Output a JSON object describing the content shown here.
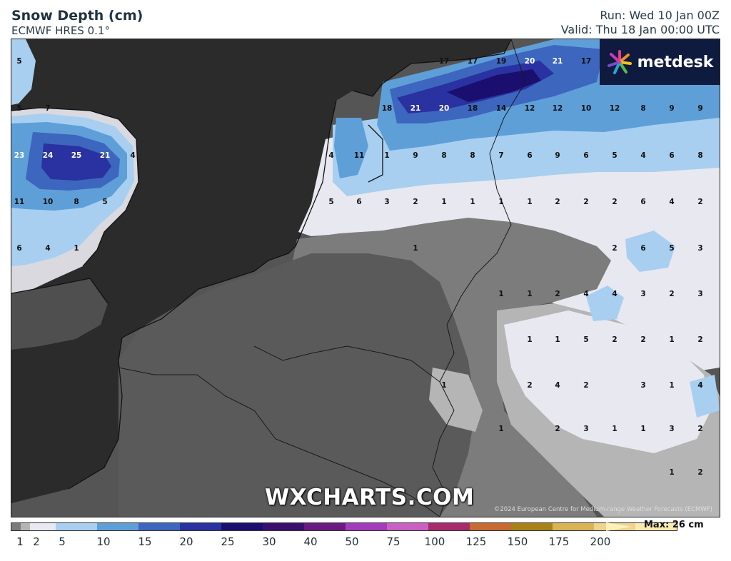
{
  "header": {
    "title": "Snow Depth (cm)",
    "model": "ECMWF HRES 0.1°",
    "run": "Run: Wed 10 Jan 00Z",
    "valid": "Valid: Thu 18 Jan 00:00 UTC"
  },
  "logo": {
    "text": "metdesk",
    "icon": "metdesk-burst-icon"
  },
  "watermark": "WXCHARTS.COM",
  "credit": "©2024 European Centre for Medium-range Weather Forecasts (ECMWF)",
  "legend": {
    "ticks": [
      "1",
      "2",
      "5",
      "10",
      "15",
      "20",
      "25",
      "30",
      "40",
      "50",
      "75",
      "100",
      "125",
      "150",
      "175",
      "200"
    ],
    "colors": [
      "#7c7c7c",
      "#b5b5b5",
      "#e8e8f0",
      "#a8cff0",
      "#5f9fd8",
      "#3d66be",
      "#2a31a0",
      "#1a0f6e",
      "#3b0f6e",
      "#6a1a80",
      "#a23cbc",
      "#c960c4",
      "#a82c6c",
      "#c86a34",
      "#a88218",
      "#d8b454",
      "#f0d48c",
      "#fbeaae"
    ],
    "max_label": "Max: 26 cm"
  },
  "grid_values": [
    {
      "v": "5",
      "c": "#111"
    },
    {
      "v": "5",
      "c": "#111"
    },
    {
      "v": "7",
      "c": "#111"
    },
    {
      "v": "23",
      "c": "#fff"
    },
    {
      "v": "24",
      "c": "#fff"
    },
    {
      "v": "25",
      "c": "#fff"
    },
    {
      "v": "21",
      "c": "#fff"
    },
    {
      "v": "4",
      "c": "#111"
    },
    {
      "v": "11",
      "c": "#111"
    },
    {
      "v": "10",
      "c": "#111"
    },
    {
      "v": "8",
      "c": "#111"
    },
    {
      "v": "5",
      "c": "#111"
    },
    {
      "v": "6",
      "c": "#111"
    },
    {
      "v": "4",
      "c": "#111"
    },
    {
      "v": "1",
      "c": "#111"
    },
    {
      "v": "17",
      "c": "#111"
    },
    {
      "v": "17",
      "c": "#111"
    },
    {
      "v": "19",
      "c": "#111"
    },
    {
      "v": "20",
      "c": "#fff"
    },
    {
      "v": "21",
      "c": "#fff"
    },
    {
      "v": "17",
      "c": "#111"
    },
    {
      "v": "18",
      "c": "#111"
    },
    {
      "v": "21",
      "c": "#fff"
    },
    {
      "v": "20",
      "c": "#fff"
    },
    {
      "v": "18",
      "c": "#111"
    },
    {
      "v": "14",
      "c": "#111"
    },
    {
      "v": "12",
      "c": "#111"
    },
    {
      "v": "12",
      "c": "#111"
    },
    {
      "v": "10",
      "c": "#111"
    },
    {
      "v": "12",
      "c": "#111"
    },
    {
      "v": "8",
      "c": "#111"
    },
    {
      "v": "9",
      "c": "#111"
    },
    {
      "v": "9",
      "c": "#111"
    },
    {
      "v": "4",
      "c": "#111"
    },
    {
      "v": "11",
      "c": "#111"
    },
    {
      "v": "1",
      "c": "#111"
    },
    {
      "v": "9",
      "c": "#111"
    },
    {
      "v": "8",
      "c": "#111"
    },
    {
      "v": "8",
      "c": "#111"
    },
    {
      "v": "7",
      "c": "#111"
    },
    {
      "v": "6",
      "c": "#111"
    },
    {
      "v": "9",
      "c": "#111"
    },
    {
      "v": "6",
      "c": "#111"
    },
    {
      "v": "5",
      "c": "#111"
    },
    {
      "v": "4",
      "c": "#111"
    },
    {
      "v": "6",
      "c": "#111"
    },
    {
      "v": "8",
      "c": "#111"
    },
    {
      "v": "5",
      "c": "#111"
    },
    {
      "v": "6",
      "c": "#111"
    },
    {
      "v": "3",
      "c": "#111"
    },
    {
      "v": "2",
      "c": "#111"
    },
    {
      "v": "1",
      "c": "#111"
    },
    {
      "v": "1",
      "c": "#111"
    },
    {
      "v": "1",
      "c": "#111"
    },
    {
      "v": "1",
      "c": "#111"
    },
    {
      "v": "2",
      "c": "#111"
    },
    {
      "v": "2",
      "c": "#111"
    },
    {
      "v": "2",
      "c": "#111"
    },
    {
      "v": "6",
      "c": "#111"
    },
    {
      "v": "4",
      "c": "#111"
    },
    {
      "v": "2",
      "c": "#111"
    },
    {
      "v": "1",
      "c": "#111"
    },
    {
      "v": "2",
      "c": "#111"
    },
    {
      "v": "6",
      "c": "#111"
    },
    {
      "v": "5",
      "c": "#111"
    },
    {
      "v": "3",
      "c": "#111"
    },
    {
      "v": "1",
      "c": "#111"
    },
    {
      "v": "1",
      "c": "#111"
    },
    {
      "v": "2",
      "c": "#111"
    },
    {
      "v": "4",
      "c": "#111"
    },
    {
      "v": "4",
      "c": "#111"
    },
    {
      "v": "3",
      "c": "#111"
    },
    {
      "v": "2",
      "c": "#111"
    },
    {
      "v": "3",
      "c": "#111"
    },
    {
      "v": "1",
      "c": "#111"
    },
    {
      "v": "1",
      "c": "#111"
    },
    {
      "v": "5",
      "c": "#111"
    },
    {
      "v": "2",
      "c": "#111"
    },
    {
      "v": "2",
      "c": "#111"
    },
    {
      "v": "1",
      "c": "#111"
    },
    {
      "v": "2",
      "c": "#111"
    },
    {
      "v": "1",
      "c": "#111"
    },
    {
      "v": "2",
      "c": "#111"
    },
    {
      "v": "4",
      "c": "#111"
    },
    {
      "v": "2",
      "c": "#111"
    },
    {
      "v": "3",
      "c": "#111"
    },
    {
      "v": "1",
      "c": "#111"
    },
    {
      "v": "4",
      "c": "#111"
    },
    {
      "v": "1",
      "c": "#111"
    },
    {
      "v": "2",
      "c": "#111"
    },
    {
      "v": "3",
      "c": "#111"
    },
    {
      "v": "1",
      "c": "#111"
    },
    {
      "v": "1",
      "c": "#111"
    },
    {
      "v": "3",
      "c": "#111"
    },
    {
      "v": "2",
      "c": "#111"
    },
    {
      "v": "1",
      "c": "#111"
    },
    {
      "v": "2",
      "c": "#111"
    }
  ]
}
